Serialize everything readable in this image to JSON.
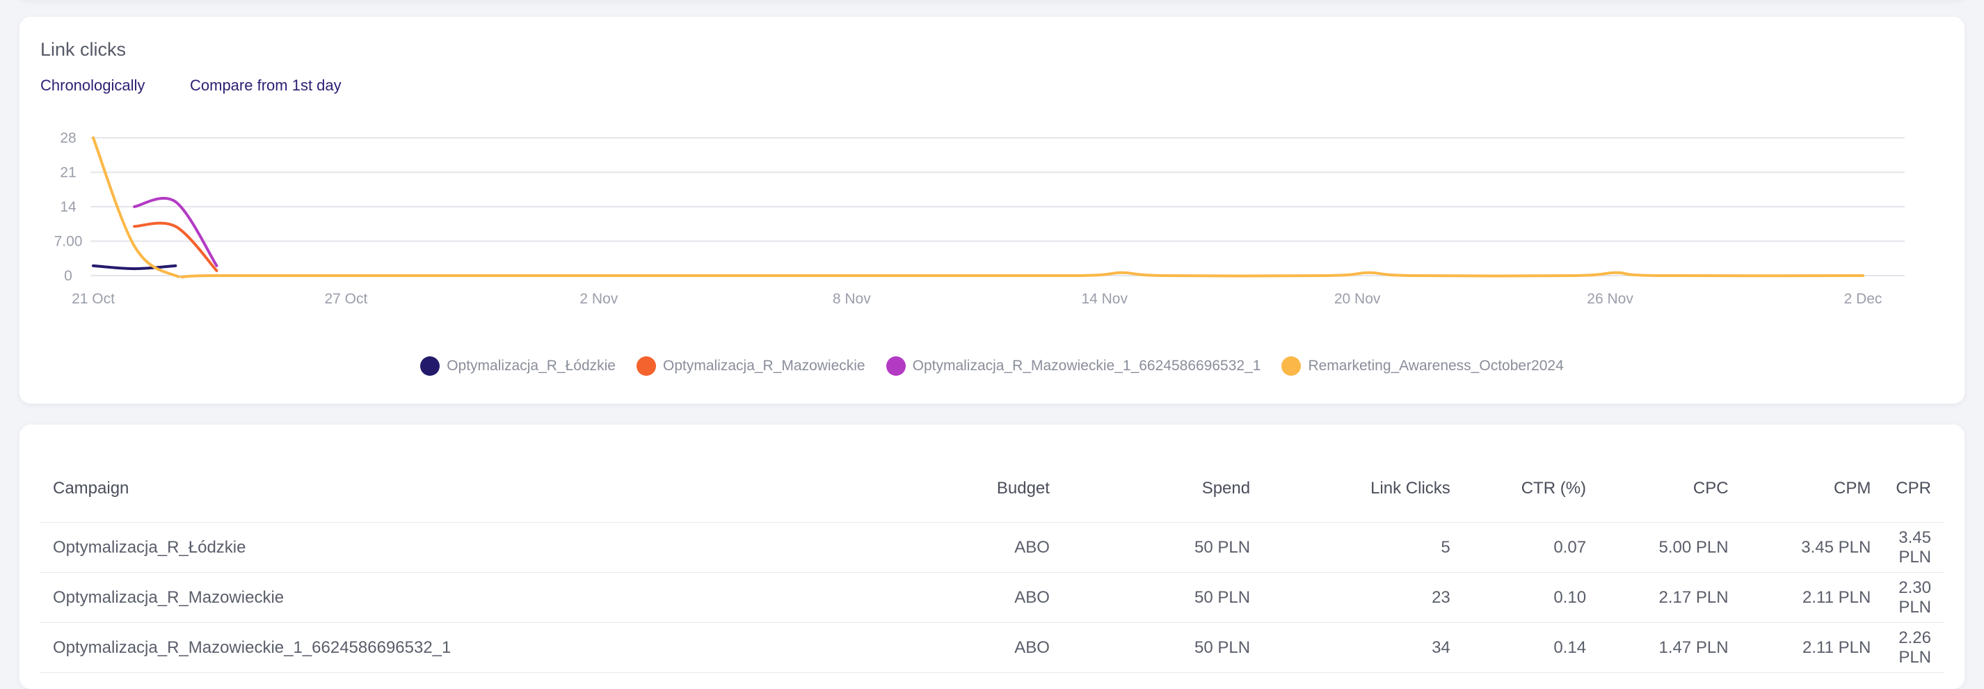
{
  "chart_card": {
    "title": "Link clicks",
    "toggles": [
      "Chronologically",
      "Compare from 1st day"
    ]
  },
  "chart_data": {
    "type": "line",
    "title": "Link clicks",
    "ylim": [
      0,
      28
    ],
    "y_ticks": [
      "0",
      "7.00",
      "14",
      "21",
      "28"
    ],
    "x_ticks": [
      "21 Oct",
      "27 Oct",
      "2 Nov",
      "8 Nov",
      "14 Nov",
      "20 Nov",
      "26 Nov",
      "2 Dec"
    ],
    "x_range_days": [
      0,
      43
    ],
    "legend_position": "bottom-center",
    "grid": true,
    "series": [
      {
        "name": "Optymalizacja_R_Łódzkie",
        "color": "#241a6b",
        "points": [
          [
            0,
            2
          ],
          [
            1,
            1.4
          ],
          [
            2,
            2
          ]
        ]
      },
      {
        "name": "Optymalizacja_R_Mazowieckie",
        "color": "#f4622d",
        "points": [
          [
            1,
            10
          ],
          [
            2,
            10
          ],
          [
            3,
            1
          ]
        ]
      },
      {
        "name": "Optymalizacja_R_Mazowieckie_1_6624586696532_1",
        "color": "#b33bc4",
        "points": [
          [
            1,
            14
          ],
          [
            2,
            15
          ],
          [
            3,
            2
          ]
        ]
      },
      {
        "name": "Remarketing_Awareness_October2024",
        "color": "#fbb848",
        "points": [
          [
            0,
            28
          ],
          [
            1,
            6
          ],
          [
            2,
            0
          ],
          [
            3,
            0
          ],
          [
            10,
            0
          ],
          [
            20,
            0
          ],
          [
            24,
            0
          ],
          [
            25,
            0.6
          ],
          [
            26,
            0
          ],
          [
            30,
            0
          ],
          [
            31,
            0.6
          ],
          [
            32,
            0
          ],
          [
            36,
            0
          ],
          [
            37,
            0.6
          ],
          [
            38,
            0
          ],
          [
            43,
            0
          ]
        ]
      }
    ]
  },
  "table": {
    "columns": [
      "Campaign",
      "Budget",
      "Spend",
      "Link Clicks",
      "CTR (%)",
      "CPC",
      "CPM",
      "CPR"
    ],
    "rows": [
      [
        "Optymalizacja_R_Łódzkie",
        "ABO",
        "50 PLN",
        "5",
        "0.07",
        "5.00 PLN",
        "3.45 PLN",
        "3.45 PLN"
      ],
      [
        "Optymalizacja_R_Mazowieckie",
        "ABO",
        "50 PLN",
        "23",
        "0.10",
        "2.17 PLN",
        "2.11 PLN",
        "2.30 PLN"
      ],
      [
        "Optymalizacja_R_Mazowieckie_1_6624586696532_1",
        "ABO",
        "50 PLN",
        "34",
        "0.14",
        "1.47 PLN",
        "2.11 PLN",
        "2.26 PLN"
      ]
    ]
  },
  "colors": {
    "accent": "#2b1e73",
    "grid": "#e3e5ea",
    "page_bg": "#f3f4f8"
  }
}
